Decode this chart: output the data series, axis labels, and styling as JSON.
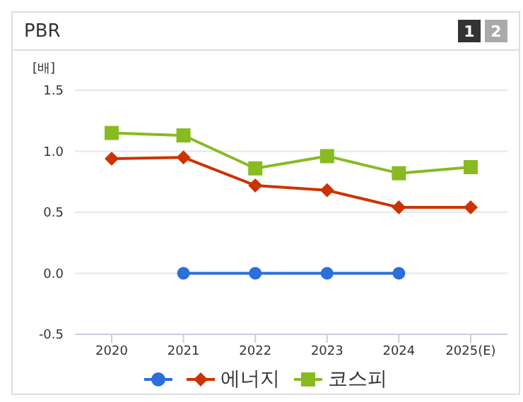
{
  "chart_data": {
    "type": "line",
    "title": "PBR",
    "ylabel": "[배]",
    "annotations": [
      "1",
      "2"
    ],
    "categories": [
      "2020",
      "2021",
      "2022",
      "2023",
      "2024",
      "2025(E)"
    ],
    "series": [
      {
        "color": "#2a6fdb",
        "marker": "circle",
        "values": [
          null,
          0,
          0,
          0,
          0,
          null
        ]
      },
      {
        "name": "에너지",
        "color": "#cc3300",
        "marker": "diamond",
        "values": [
          0.94,
          0.95,
          0.72,
          0.68,
          0.54,
          0.54
        ]
      },
      {
        "name": "코스피",
        "color": "#88bb22",
        "marker": "square",
        "values": [
          1.15,
          1.13,
          0.86,
          0.96,
          0.82,
          0.87
        ]
      }
    ],
    "ylim": [
      -0.5,
      1.5
    ],
    "yticks": [
      -0.5,
      {
        "value": 0,
        "label": "0.0"
      },
      0.5,
      {
        "value": 1,
        "label": "1.0"
      },
      1.5
    ],
    "grid": "y",
    "legend": "bottom"
  }
}
